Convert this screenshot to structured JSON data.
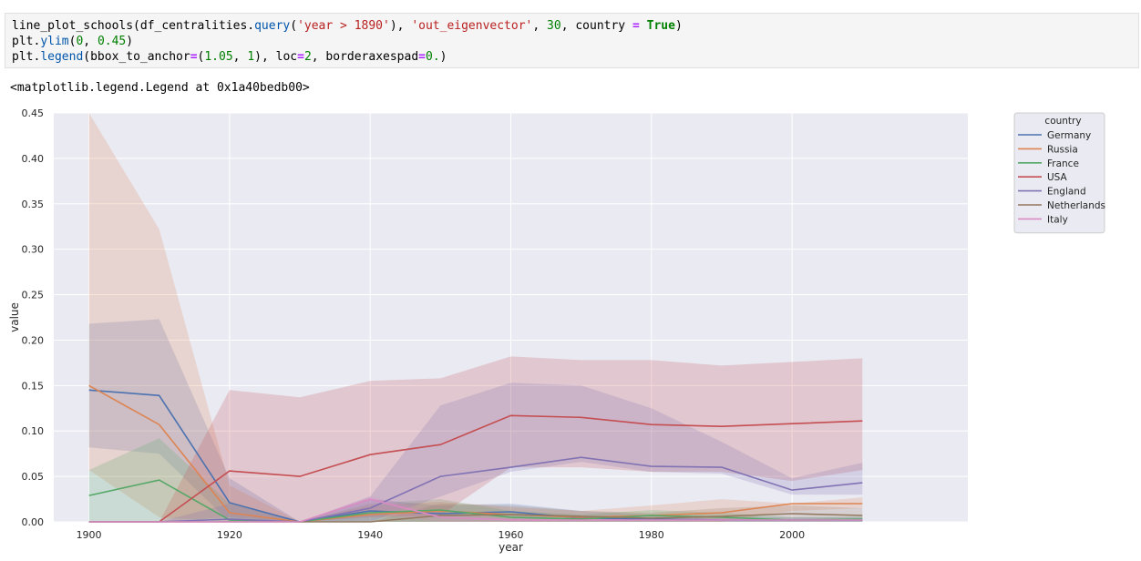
{
  "code": {
    "line1": [
      {
        "t": "line_plot_schools(df_centralities.",
        "c": ""
      },
      {
        "t": "query",
        "c": "attr"
      },
      {
        "t": "(",
        "c": ""
      },
      {
        "t": "'year > 1890'",
        "c": "str"
      },
      {
        "t": "), ",
        "c": ""
      },
      {
        "t": "'out_eigenvector'",
        "c": "str"
      },
      {
        "t": ", ",
        "c": ""
      },
      {
        "t": "30",
        "c": "num"
      },
      {
        "t": ", country ",
        "c": ""
      },
      {
        "t": "=",
        "c": "op"
      },
      {
        "t": " ",
        "c": ""
      },
      {
        "t": "True",
        "c": "kw"
      },
      {
        "t": ")",
        "c": ""
      }
    ],
    "line2": [
      {
        "t": "plt.",
        "c": ""
      },
      {
        "t": "ylim",
        "c": "attr"
      },
      {
        "t": "(",
        "c": ""
      },
      {
        "t": "0",
        "c": "num"
      },
      {
        "t": ", ",
        "c": ""
      },
      {
        "t": "0.45",
        "c": "num"
      },
      {
        "t": ")",
        "c": ""
      }
    ],
    "line3": [
      {
        "t": "plt.",
        "c": ""
      },
      {
        "t": "legend",
        "c": "attr"
      },
      {
        "t": "(bbox_to_anchor",
        "c": ""
      },
      {
        "t": "=",
        "c": "op"
      },
      {
        "t": "(",
        "c": ""
      },
      {
        "t": "1.05",
        "c": "num"
      },
      {
        "t": ", ",
        "c": ""
      },
      {
        "t": "1",
        "c": "num"
      },
      {
        "t": "), loc",
        "c": ""
      },
      {
        "t": "=",
        "c": "op"
      },
      {
        "t": "2",
        "c": "num"
      },
      {
        "t": ", borderaxespad",
        "c": ""
      },
      {
        "t": "=",
        "c": "op"
      },
      {
        "t": "0.",
        "c": "num"
      },
      {
        "t": ")",
        "c": ""
      }
    ]
  },
  "output": {
    "repr": "<matplotlib.legend.Legend at 0x1a40bedb00>"
  },
  "chart_data": {
    "type": "line",
    "xlabel": "year",
    "ylabel": "value",
    "xlim": [
      1895,
      2025
    ],
    "ylim": [
      0,
      0.45
    ],
    "x_ticks": [
      1900,
      1920,
      1940,
      1960,
      1980,
      2000
    ],
    "y_ticks": [
      0.0,
      0.05,
      0.1,
      0.15,
      0.2,
      0.25,
      0.3,
      0.35,
      0.4,
      0.45
    ],
    "grid": true,
    "background": "#eaeaf2",
    "legend": {
      "title": "country",
      "placement": "outside top-right"
    },
    "x": [
      1900,
      1910,
      1920,
      1930,
      1940,
      1950,
      1960,
      1970,
      1980,
      1990,
      2000,
      2010
    ],
    "series": [
      {
        "name": "Germany",
        "color": "#4c72b0",
        "values": [
          0.145,
          0.139,
          0.021,
          0,
          0.012,
          0.009,
          0.011,
          0.004,
          0.003,
          0.002,
          0.002,
          0.002
        ],
        "lower": [
          0.082,
          0.075,
          0,
          0,
          0,
          0,
          0,
          0,
          0,
          0,
          0,
          0
        ],
        "upper": [
          0.218,
          0.223,
          0.048,
          0,
          0.025,
          0.018,
          0.02,
          0.012,
          0.008,
          0.006,
          0.005,
          0.005
        ]
      },
      {
        "name": "Russia",
        "color": "#dd8452",
        "values": [
          0.15,
          0.107,
          0.01,
          0,
          0.008,
          0.012,
          0.008,
          0.005,
          0.007,
          0.01,
          0.02,
          0.02
        ],
        "lower": [
          0.057,
          0.005,
          0,
          0,
          0,
          0,
          0,
          0,
          0,
          0,
          0.012,
          0.015
        ],
        "upper": [
          0.45,
          0.322,
          0.04,
          0,
          0.018,
          0.022,
          0.016,
          0.012,
          0.018,
          0.025,
          0.02,
          0.027
        ]
      },
      {
        "name": "France",
        "color": "#55a868",
        "values": [
          0.029,
          0.046,
          0.002,
          0,
          0.01,
          0.013,
          0.005,
          0.003,
          0.007,
          0.005,
          0.002,
          0.003
        ],
        "lower": [
          0,
          0,
          0,
          0,
          0,
          0,
          0,
          0,
          0,
          0,
          0,
          0
        ],
        "upper": [
          0.057,
          0.092,
          0.02,
          0,
          0.02,
          0.025,
          0.012,
          0.008,
          0.013,
          0.01,
          0.005,
          0.006
        ]
      },
      {
        "name": "USA",
        "color": "#c44e52",
        "values": [
          0,
          0,
          0.056,
          0.05,
          0.074,
          0.085,
          0.117,
          0.115,
          0.107,
          0.105,
          0.108,
          0.111
        ],
        "lower": [
          0,
          0,
          0.005,
          0,
          0.005,
          0.007,
          0.06,
          0.06,
          0.055,
          0.055,
          0.045,
          0.057
        ],
        "upper": [
          0,
          0,
          0.145,
          0.137,
          0.155,
          0.158,
          0.182,
          0.178,
          0.178,
          0.172,
          0.176,
          0.18
        ]
      },
      {
        "name": "England",
        "color": "#8172b3",
        "values": [
          0,
          0,
          0.003,
          0,
          0.015,
          0.05,
          0.06,
          0.071,
          0.061,
          0.06,
          0.035,
          0.043
        ],
        "lower": [
          0,
          0,
          0,
          0,
          0,
          0.028,
          0.055,
          0.066,
          0.055,
          0.053,
          0.03,
          0.03
        ],
        "upper": [
          0,
          0,
          0.02,
          0,
          0.028,
          0.128,
          0.153,
          0.15,
          0.125,
          0.088,
          0.048,
          0.065
        ]
      },
      {
        "name": "Netherlands",
        "color": "#937860",
        "values": [
          0,
          0,
          0,
          0,
          0,
          0.007,
          0.008,
          0.006,
          0.004,
          0.006,
          0.009,
          0.007
        ],
        "lower": [
          0,
          0,
          0,
          0,
          0,
          0,
          0,
          0,
          0,
          0,
          0,
          0
        ],
        "upper": [
          0,
          0,
          0,
          0,
          0,
          0.02,
          0.018,
          0.012,
          0.01,
          0.015,
          0.018,
          0.015
        ]
      },
      {
        "name": "Italy",
        "color": "#da8bc3",
        "values": [
          0,
          0,
          0,
          0,
          0.025,
          0.005,
          0.002,
          0.002,
          0.002,
          0.002,
          0.002,
          0.002
        ],
        "lower": [
          0,
          0,
          0,
          0,
          0.01,
          0,
          0,
          0,
          0,
          0,
          0,
          0
        ],
        "upper": [
          0,
          0,
          0,
          0,
          0.028,
          0.01,
          0.004,
          0.004,
          0.004,
          0.004,
          0.004,
          0.004
        ]
      }
    ]
  }
}
